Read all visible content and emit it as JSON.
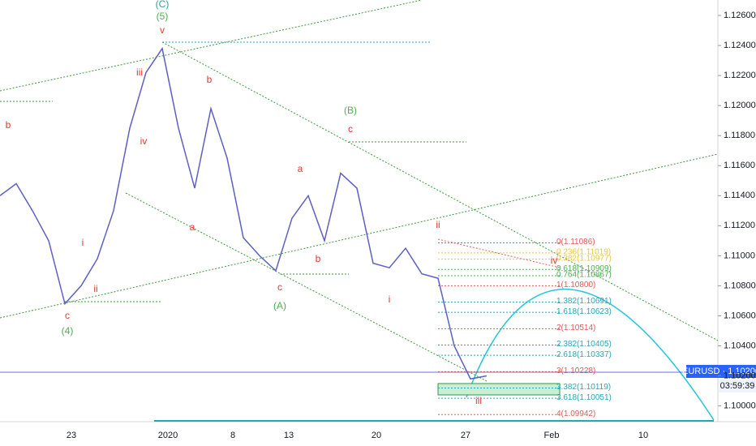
{
  "chart_data": {
    "type": "line",
    "symbol_tag": "EURUSD · 1.10200",
    "countdown": "03:59:39",
    "series": [
      {
        "color": "#5d5fc4",
        "values": [
          1.114,
          1.1148,
          1.113,
          1.111,
          1.1068,
          1.108,
          1.1098,
          1.113,
          1.1185,
          1.1222,
          1.1238,
          1.1185,
          1.1145,
          1.1198,
          1.1165,
          1.1112,
          1.11,
          1.109,
          1.1125,
          1.114,
          1.111,
          1.1155,
          1.1145,
          1.1095,
          1.1092,
          1.1105,
          1.1088,
          1.1085,
          1.104,
          1.1018,
          1.102
        ]
      }
    ],
    "ylim": [
      1.09787,
      1.12703
    ],
    "yticks": [
      {
        "value": 1.126,
        "label": "1.12600"
      },
      {
        "value": 1.124,
        "label": "1.12400"
      },
      {
        "value": 1.122,
        "label": "1.12200"
      },
      {
        "value": 1.12,
        "label": "1.12000"
      },
      {
        "value": 1.118,
        "label": "1.11800"
      },
      {
        "value": 1.116,
        "label": "1.11600"
      },
      {
        "value": 1.114,
        "label": "1.11400"
      },
      {
        "value": 1.112,
        "label": "1.11200"
      },
      {
        "value": 1.11,
        "label": "1.11000"
      },
      {
        "value": 1.108,
        "label": "1.10800"
      },
      {
        "value": 1.106,
        "label": "1.10600"
      },
      {
        "value": 1.104,
        "label": "1.10400"
      },
      {
        "value": 1.102,
        "label": "1.10200"
      },
      {
        "value": 1.1,
        "label": "1.10000"
      }
    ],
    "time_labels": [
      "23",
      "2020",
      "8",
      "13",
      "20",
      "27",
      "Feb",
      "10"
    ],
    "fib_levels": [
      {
        "value": 1.11086,
        "label": "0(1.11086)",
        "color": "#e05a5a"
      },
      {
        "value": 1.11019,
        "label": "0.236(1.11019)",
        "color": "#e8c640"
      },
      {
        "value": 1.10977,
        "label": "0.382(1.10977)",
        "color": "#e8c640"
      },
      {
        "value": 1.10909,
        "label": "0.618(1.10909)",
        "color": "#4caf50"
      },
      {
        "value": 1.10867,
        "label": "0.764(1.10867)",
        "color": "#4caf50"
      },
      {
        "value": 1.108,
        "label": "1(1.10800)",
        "color": "#e05a5a"
      },
      {
        "value": 1.10691,
        "label": "1.382(1.10691)",
        "color": "#26a6b8"
      },
      {
        "value": 1.10623,
        "label": "1.618(1.10623)",
        "color": "#26a6b8"
      },
      {
        "value": 1.10514,
        "label": "2(1.10514)",
        "color": "#e05a5a"
      },
      {
        "value": 1.10405,
        "label": "2.382(1.10405)",
        "color": "#26a6b8"
      },
      {
        "value": 1.10337,
        "label": "2.618(1.10337)",
        "color": "#26a6b8"
      },
      {
        "value": 1.10228,
        "label": "3(1.10228)",
        "color": "#e05a5a"
      },
      {
        "value": 1.10119,
        "label": "3.382(1.10119)",
        "color": "#26a6b8"
      },
      {
        "value": 1.10051,
        "label": "3.618(1.10051)",
        "color": "#26a6b8"
      },
      {
        "value": 1.09942,
        "label": "4(1.09942)",
        "color": "#e05a5a"
      }
    ],
    "wave_labels": [
      {
        "text": "(C)",
        "color": "#26a69a"
      },
      {
        "text": "(5)",
        "color": "#4caf50"
      },
      {
        "text": "v",
        "color": "#e53935"
      },
      {
        "text": "iii",
        "color": "#e53935"
      },
      {
        "text": "iv",
        "color": "#e53935"
      },
      {
        "text": "b",
        "color": "#e53935"
      },
      {
        "text": "a",
        "color": "#e53935"
      },
      {
        "text": "b",
        "color": "#e53935"
      },
      {
        "text": "i",
        "color": "#e53935"
      },
      {
        "text": "ii",
        "color": "#e53935"
      },
      {
        "text": "c",
        "color": "#e53935"
      },
      {
        "text": "(4)",
        "color": "#4caf50"
      },
      {
        "text": "a",
        "color": "#e53935"
      },
      {
        "text": "b",
        "color": "#e53935"
      },
      {
        "text": "c",
        "color": "#e53935"
      },
      {
        "text": "(A)",
        "color": "#4caf50"
      },
      {
        "text": "(B)",
        "color": "#4caf50"
      },
      {
        "text": "c",
        "color": "#e53935"
      },
      {
        "text": "ii",
        "color": "#e53935"
      },
      {
        "text": "i",
        "color": "#e53935"
      },
      {
        "text": "iv",
        "color": "#e53935"
      },
      {
        "text": "iii",
        "color": "#e53935"
      }
    ]
  }
}
